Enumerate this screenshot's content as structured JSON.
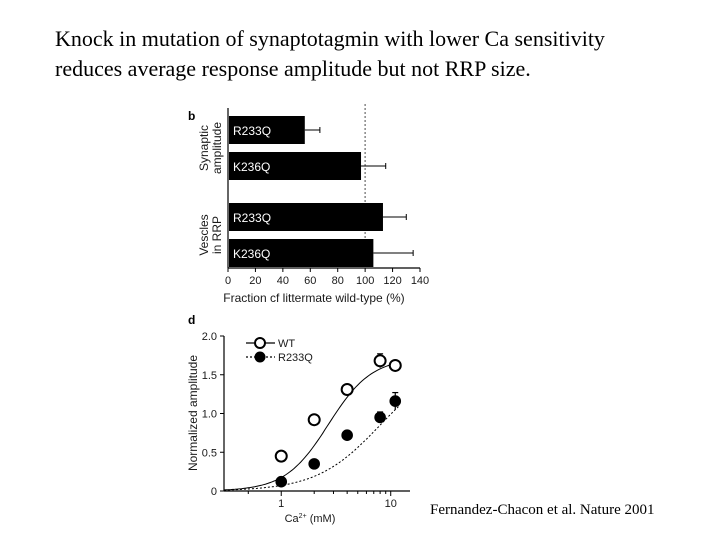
{
  "slide": {
    "title_line1": "Knock in mutation of synaptotagmin with lower Ca sensitivity",
    "title_line2": "reduces average response amplitude but not RRP size.",
    "citation": "Fernandez-Chacon et al. Nature 2001"
  },
  "chart_data": [
    {
      "type": "bar",
      "panel_label": "b",
      "orientation": "horizontal",
      "groups": [
        {
          "label_lines": [
            "Synaptic",
            "amplitude"
          ],
          "bars": [
            {
              "label": "R233Q",
              "value": 56,
              "error": 11
            },
            {
              "label": "K236Q",
              "value": 97,
              "error": 18
            }
          ]
        },
        {
          "label_lines": [
            "Vescles",
            "in RRP"
          ],
          "bars": [
            {
              "label": "R233Q",
              "value": 113,
              "error": 17
            },
            {
              "label": "K236Q",
              "value": 106,
              "error": 29
            }
          ]
        }
      ],
      "xlabel": "Fraction cf littermate wild-type (%)",
      "xticks": [
        0,
        20,
        40,
        60,
        80,
        100,
        120,
        140
      ],
      "xlim": [
        0,
        140
      ],
      "reference_line": 100,
      "colors": {
        "bar": "#000000",
        "bar_text": "#ffffff",
        "reference": "#888888"
      }
    },
    {
      "type": "scatter",
      "panel_label": "d",
      "xscale": "log",
      "xlabel_main": "Ca",
      "xlabel_sup": "2+",
      "xlabel_unit": " (mM)",
      "ylabel": "Normalized amplitude",
      "xticks": [
        1,
        10
      ],
      "yticks": [
        "0",
        "0.5",
        "1.0",
        "1.5",
        "2.0"
      ],
      "xlim": [
        0.3,
        15
      ],
      "ylim": [
        0,
        2.0
      ],
      "legend": {
        "position": "top-left"
      },
      "series": [
        {
          "name": "WT",
          "marker": "open-circle",
          "line": "solid",
          "x": [
            1,
            2,
            4,
            8,
            11
          ],
          "y": [
            0.45,
            0.92,
            1.31,
            1.68,
            1.62
          ],
          "err": [
            0,
            0,
            0,
            0.09,
            0
          ],
          "fit": {
            "vmax": 1.72,
            "k": 2.7,
            "n": 2.2
          }
        },
        {
          "name": "R233Q",
          "marker": "filled-circle",
          "line": "dashed",
          "x": [
            1,
            2,
            4,
            8,
            11
          ],
          "y": [
            0.12,
            0.35,
            0.72,
            0.95,
            1.16
          ],
          "err": [
            0,
            0,
            0,
            0.07,
            0.11
          ],
          "fit": {
            "vmax": 1.7,
            "k": 8.0,
            "n": 1.5
          }
        }
      ]
    }
  ]
}
